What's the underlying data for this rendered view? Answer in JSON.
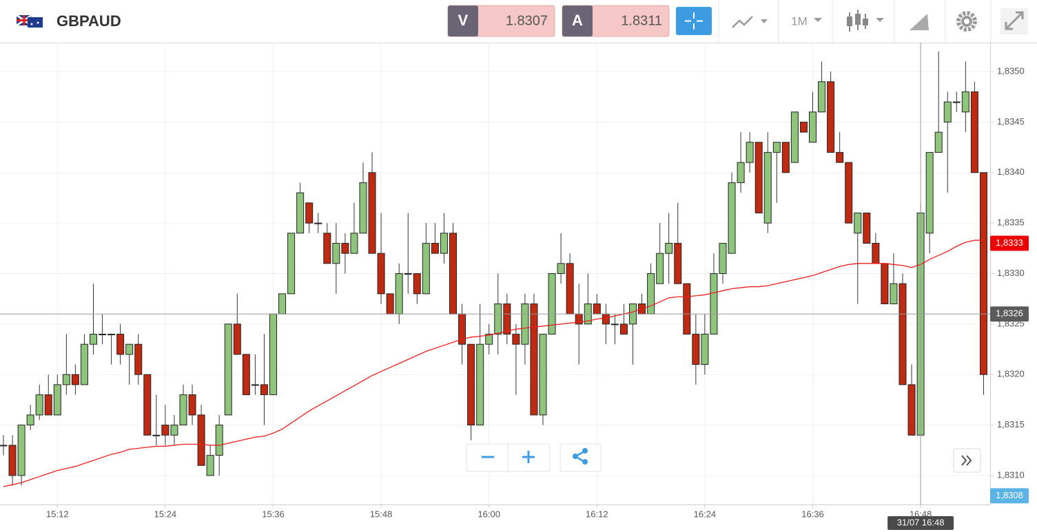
{
  "toolbar": {
    "symbol": "GBPAUD",
    "sell_label": "V",
    "sell_price": 1.8307,
    "buy_label": "A",
    "buy_price": 1.8311,
    "timeframe": "1M"
  },
  "chart_data": {
    "type": "candlestick",
    "categories": [
      null,
      null,
      null,
      null,
      null,
      null,
      "15:12",
      null,
      null,
      null,
      null,
      null,
      null,
      null,
      null,
      null,
      null,
      null,
      "15:24",
      null,
      null,
      null,
      null,
      null,
      null,
      null,
      null,
      null,
      null,
      null,
      "15:36",
      null,
      null,
      null,
      null,
      null,
      null,
      null,
      null,
      null,
      null,
      null,
      "15:48",
      null,
      null,
      null,
      null,
      null,
      null,
      null,
      null,
      null,
      null,
      null,
      "16:00",
      null,
      null,
      null,
      null,
      null,
      null,
      null,
      null,
      null,
      null,
      null,
      "16:12",
      null,
      null,
      null,
      null,
      null,
      null,
      null,
      null,
      null,
      null,
      null,
      "16:24",
      null,
      null,
      null,
      null,
      null,
      null,
      null,
      null,
      null,
      null,
      null,
      "16:36",
      null,
      null,
      null,
      null,
      null,
      null,
      null,
      null,
      null,
      null,
      null,
      "16:48",
      null,
      null,
      null,
      null,
      null,
      null,
      null
    ],
    "open": [
      1.8313,
      1.8313,
      1.831,
      1.8315,
      1.8316,
      1.8318,
      1.8316,
      1.8319,
      1.832,
      1.8319,
      1.8323,
      1.8324,
      1.8324,
      1.8324,
      1.8322,
      1.8323,
      1.832,
      1.8314,
      1.8315,
      1.8314,
      1.8315,
      1.8318,
      1.8316,
      1.831,
      1.8312,
      1.8316,
      1.8325,
      1.8322,
      1.8319,
      1.8319,
      1.8318,
      1.8326,
      1.8328,
      1.8334,
      1.8337,
      1.8335,
      1.8334,
      1.8331,
      1.8333,
      1.8332,
      1.8334,
      1.834,
      1.8332,
      1.8328,
      1.8326,
      1.833,
      1.833,
      1.8328,
      1.8333,
      1.8332,
      1.8334,
      1.8326,
      1.8323,
      1.8315,
      1.8323,
      1.8324,
      1.8327,
      1.8324,
      1.8323,
      1.8327,
      1.8316,
      1.8324,
      1.833,
      1.8331,
      1.8326,
      1.8325,
      1.8327,
      1.8326,
      1.8325,
      1.8325,
      1.8325,
      1.8327,
      1.8326,
      1.8329,
      1.8332,
      1.8333,
      1.8329,
      1.8324,
      1.8321,
      1.8324,
      1.833,
      1.8332,
      1.8339,
      1.8341,
      1.8343,
      1.8335,
      1.8342,
      1.8343,
      1.8341,
      1.8345,
      1.8343,
      1.8346,
      1.8349,
      1.8342,
      1.8341,
      1.8334,
      1.8336,
      1.8333,
      1.8331,
      1.8327,
      1.8329,
      1.8319,
      1.8314,
      1.8334,
      1.8342,
      1.8345,
      1.8347,
      1.8346,
      1.8348,
      1.834
    ],
    "high": [
      1.8314,
      1.8314,
      1.8315,
      1.8317,
      1.8319,
      1.832,
      1.832,
      1.8324,
      1.8321,
      1.8324,
      1.8329,
      1.8326,
      1.8324,
      1.8325,
      1.8323,
      1.8324,
      1.832,
      1.8318,
      1.8317,
      1.8316,
      1.8319,
      1.8319,
      1.8317,
      1.8313,
      1.8316,
      1.8325,
      1.8328,
      1.8322,
      1.8322,
      1.8324,
      1.8326,
      1.8328,
      1.8334,
      1.8339,
      1.8337,
      1.8336,
      1.8335,
      1.8335,
      1.8334,
      1.8337,
      1.8341,
      1.8342,
      1.8336,
      1.8328,
      1.8331,
      1.8336,
      1.833,
      1.8335,
      1.8335,
      1.8336,
      1.8335,
      1.8327,
      1.8323,
      1.8327,
      1.8325,
      1.833,
      1.8328,
      1.8325,
      1.8328,
      1.8328,
      1.8324,
      1.833,
      1.8334,
      1.8332,
      1.8329,
      1.833,
      1.8328,
      1.8327,
      1.8326,
      1.8327,
      1.8327,
      1.8328,
      1.8331,
      1.8335,
      1.8336,
      1.8337,
      1.8329,
      1.8326,
      1.8326,
      1.8332,
      1.8333,
      1.834,
      1.8344,
      1.8344,
      1.8343,
      1.8344,
      1.8343,
      1.8343,
      1.8346,
      1.8345,
      1.8348,
      1.8351,
      1.835,
      1.8344,
      1.8341,
      1.8336,
      1.8336,
      1.8334,
      1.8331,
      1.8332,
      1.833,
      1.8321,
      1.8337,
      1.8342,
      1.8352,
      1.8348,
      1.8348,
      1.8351,
      1.8349,
      1.834
    ],
    "low": [
      1.8312,
      1.8309,
      1.8309,
      1.83145,
      1.83155,
      1.8316,
      1.8316,
      1.8318,
      1.8318,
      1.8319,
      1.8322,
      1.8323,
      1.8321,
      1.8321,
      1.8319,
      1.8319,
      1.8314,
      1.8313,
      1.8313,
      1.8313,
      1.8315,
      1.8315,
      1.8311,
      1.831,
      1.831,
      1.8316,
      1.8322,
      1.8318,
      1.8318,
      1.8315,
      1.8318,
      1.8326,
      1.8328,
      1.8334,
      1.8334,
      1.8334,
      1.8331,
      1.8328,
      1.833,
      1.8332,
      1.8334,
      1.8332,
      1.8327,
      1.8326,
      1.8325,
      1.8328,
      1.8327,
      1.8328,
      1.8332,
      1.8331,
      1.8326,
      1.8321,
      1.83135,
      1.8315,
      1.8322,
      1.8322,
      1.8323,
      1.8318,
      1.8321,
      1.8316,
      1.8315,
      1.8324,
      1.8329,
      1.8326,
      1.8321,
      1.8325,
      1.8326,
      1.8323,
      1.8323,
      1.8324,
      1.8321,
      1.8326,
      1.8326,
      1.8329,
      1.8329,
      1.8329,
      1.8324,
      1.8319,
      1.832,
      1.8324,
      1.8329,
      1.8332,
      1.8338,
      1.834,
      1.8336,
      1.8334,
      1.8337,
      1.834,
      1.8341,
      1.8344,
      1.8343,
      1.8346,
      1.8342,
      1.8341,
      1.8335,
      1.8327,
      1.8333,
      1.8331,
      1.8327,
      1.8327,
      1.8319,
      1.8314,
      1.8314,
      1.8332,
      1.8342,
      1.8338,
      1.8346,
      1.8344,
      1.834,
      1.8318
    ],
    "close": [
      1.8313,
      1.831,
      1.8315,
      1.8316,
      1.8318,
      1.8316,
      1.8319,
      1.832,
      1.8319,
      1.8323,
      1.8324,
      1.8324,
      1.8324,
      1.8322,
      1.8323,
      1.832,
      1.8314,
      1.8314,
      1.8314,
      1.8315,
      1.8318,
      1.8316,
      1.8311,
      1.8312,
      1.8315,
      1.8325,
      1.8322,
      1.8318,
      1.8319,
      1.8318,
      1.8326,
      1.8328,
      1.8334,
      1.8338,
      1.8335,
      1.8335,
      1.8331,
      1.8333,
      1.8332,
      1.8334,
      1.8339,
      1.8332,
      1.8328,
      1.8326,
      1.833,
      1.833,
      1.8328,
      1.8333,
      1.8332,
      1.8334,
      1.8326,
      1.8323,
      1.8315,
      1.8323,
      1.8324,
      1.8327,
      1.8324,
      1.8323,
      1.8327,
      1.8316,
      1.8324,
      1.833,
      1.8331,
      1.8326,
      1.8325,
      1.8327,
      1.8326,
      1.8325,
      1.8325,
      1.8324,
      1.8327,
      1.8326,
      1.833,
      1.8332,
      1.8333,
      1.8329,
      1.8324,
      1.8321,
      1.8324,
      1.833,
      1.8333,
      1.8339,
      1.8341,
      1.8343,
      1.8336,
      1.8342,
      1.8343,
      1.834,
      1.8346,
      1.8344,
      1.8346,
      1.8349,
      1.8342,
      1.8341,
      1.8335,
      1.8336,
      1.8333,
      1.8331,
      1.8327,
      1.8329,
      1.8319,
      1.8314,
      1.8336,
      1.8342,
      1.8344,
      1.8347,
      1.8347,
      1.8348,
      1.834,
      1.832
    ],
    "up_color": "#8fc47c",
    "down_color": "#bf2a12",
    "overlays": [
      {
        "type": "line",
        "color": "#ee1c1c",
        "values": [
          1.83089,
          1.83091,
          1.83093,
          1.83096,
          1.83099,
          1.83102,
          1.83105,
          1.83107,
          1.83109,
          1.83112,
          1.83115,
          1.83118,
          1.83121,
          1.83123,
          1.83126,
          1.83127,
          1.83128,
          1.83129,
          1.83129,
          1.8313,
          1.83131,
          1.83131,
          1.83131,
          1.8313,
          1.8313,
          1.83132,
          1.83134,
          1.83136,
          1.83138,
          1.83139,
          1.83142,
          1.83146,
          1.83152,
          1.83158,
          1.83164,
          1.83169,
          1.83174,
          1.83179,
          1.83184,
          1.83189,
          1.83194,
          1.83199,
          1.83203,
          1.83207,
          1.83211,
          1.83215,
          1.83219,
          1.83223,
          1.83226,
          1.83229,
          1.83232,
          1.83235,
          1.83237,
          1.83238,
          1.83239,
          1.83241,
          1.83243,
          1.83245,
          1.83246,
          1.83247,
          1.83248,
          1.83249,
          1.8325,
          1.83251,
          1.83252,
          1.83253,
          1.83255,
          1.83256,
          1.83258,
          1.8326,
          1.83262,
          1.83265,
          1.83268,
          1.83272,
          1.83276,
          1.83277,
          1.83277,
          1.83278,
          1.83279,
          1.83281,
          1.83283,
          1.83285,
          1.83286,
          1.83287,
          1.83287,
          1.83288,
          1.8329,
          1.83292,
          1.83294,
          1.83296,
          1.83298,
          1.83301,
          1.83304,
          1.83307,
          1.83309,
          1.8331,
          1.8331,
          1.8331,
          1.8331,
          1.83309,
          1.83308,
          1.83306,
          1.83309,
          1.83314,
          1.83318,
          1.83322,
          1.83327,
          1.83331,
          1.83333,
          1.83333
        ]
      }
    ],
    "ylim": [
      1.8307,
      1.8353
    ],
    "yticks": [
      {
        "value": 1.831,
        "label": "1,8310"
      },
      {
        "value": 1.8315,
        "label": "1,8315"
      },
      {
        "value": 1.832,
        "label": "1,8320"
      },
      {
        "value": 1.8325,
        "label": "1,8325"
      },
      {
        "value": 1.833,
        "label": "1,8330"
      },
      {
        "value": 1.8335,
        "label": "1,8335"
      },
      {
        "value": 1.834,
        "label": "1,8340"
      },
      {
        "value": 1.8345,
        "label": "1,8345"
      },
      {
        "value": 1.835,
        "label": "1,8350"
      }
    ],
    "grid": true,
    "crosshair": {
      "x_label": "31/07 16:48",
      "y": {
        "value": 1.8326,
        "label": "1,8326"
      }
    },
    "price_markers": [
      {
        "value": 1.8333,
        "label": "1,8333",
        "color": "#ee0000"
      },
      {
        "value": 1.8308,
        "label": "1,8308",
        "color": "#5cb3e6"
      }
    ]
  }
}
